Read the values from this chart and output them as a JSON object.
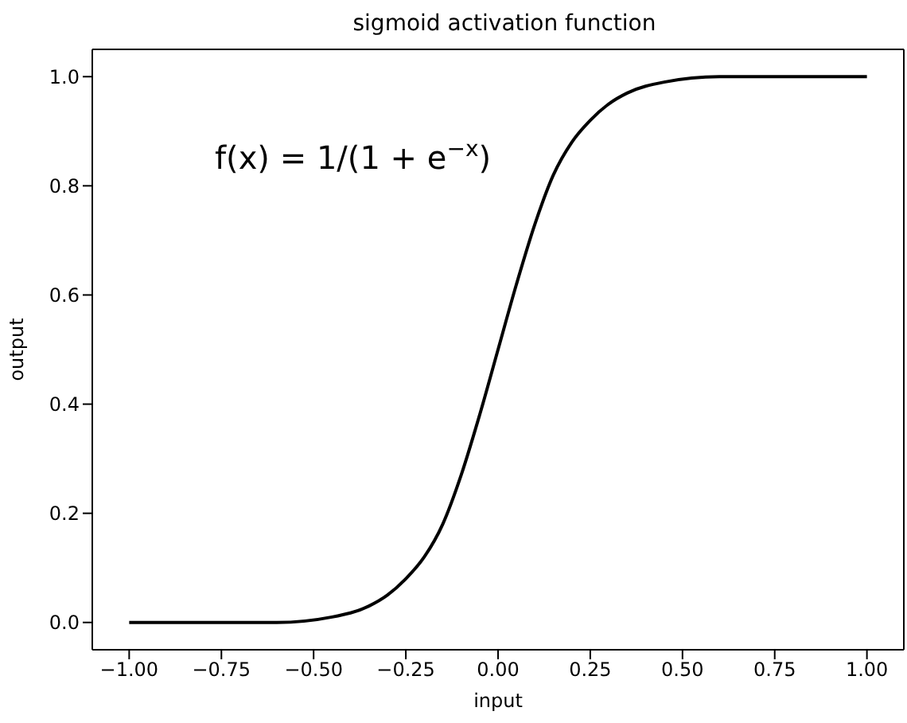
{
  "chart_data": {
    "type": "line",
    "title": "sigmoid activation function",
    "xlabel": "input",
    "ylabel": "output",
    "annotations": [
      "f(x) = 1/(1 + e$^{−x}$)"
    ],
    "x": [
      -1,
      -0.8,
      -0.6,
      -0.45,
      -0.35,
      -0.3,
      -0.25,
      -0.2,
      -0.15,
      -0.1,
      -0.05,
      0,
      0.05,
      0.1,
      0.15,
      0.2,
      0.25,
      0.3,
      0.35,
      0.45,
      0.6,
      0.8,
      1
    ],
    "series": [
      {
        "color": "#000000",
        "values": [
          0,
          0,
          0,
          0.01,
          0.03,
          0.05,
          0.08,
          0.12,
          0.18,
          0.27,
          0.38,
          0.5,
          0.62,
          0.73,
          0.82,
          0.88,
          0.92,
          0.95,
          0.97,
          0.99,
          1,
          1,
          1
        ]
      }
    ],
    "xlim": [
      -1.1,
      1.1
    ],
    "ylim": [
      -0.05,
      1.05
    ],
    "xticks": [
      {
        "value": -1,
        "label": "−1.00"
      },
      {
        "value": -0.75,
        "label": "−0.75"
      },
      {
        "value": -0.5,
        "label": "−0.50"
      },
      {
        "value": -0.25,
        "label": "−0.25"
      },
      {
        "value": 0,
        "label": "0.00"
      },
      {
        "value": 0.25,
        "label": "0.25"
      },
      {
        "value": 0.5,
        "label": "0.50"
      },
      {
        "value": 0.75,
        "label": "0.75"
      },
      {
        "value": 1,
        "label": "1.00"
      }
    ],
    "yticks": [
      {
        "value": 0,
        "label": "0.0"
      },
      {
        "value": 0.2,
        "label": "0.2"
      },
      {
        "value": 0.4,
        "label": "0.4"
      },
      {
        "value": 0.6,
        "label": "0.6"
      },
      {
        "value": 0.8,
        "label": "0.8"
      },
      {
        "value": 1,
        "label": "1.0"
      }
    ],
    "grid": false,
    "legend": false,
    "marker": "none",
    "line_style": "solid"
  }
}
